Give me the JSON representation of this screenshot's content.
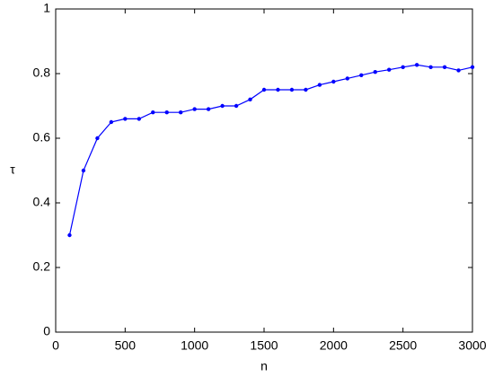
{
  "chart_data": {
    "type": "line",
    "xlabel": "n",
    "ylabel": "τ",
    "x": [
      100,
      200,
      300,
      400,
      500,
      600,
      700,
      800,
      900,
      1000,
      1100,
      1200,
      1300,
      1400,
      1500,
      1600,
      1700,
      1800,
      1900,
      2000,
      2100,
      2200,
      2300,
      2400,
      2500,
      2600,
      2700,
      2800,
      2900,
      3000
    ],
    "series": [
      {
        "color": "#0000ff",
        "values": [
          0.3,
          0.5,
          0.6,
          0.65,
          0.66,
          0.66,
          0.68,
          0.68,
          0.68,
          0.69,
          0.69,
          0.7,
          0.7,
          0.72,
          0.75,
          0.75,
          0.75,
          0.75,
          0.765,
          0.775,
          0.785,
          0.795,
          0.805,
          0.812,
          0.82,
          0.827,
          0.82,
          0.82,
          0.81,
          0.82
        ]
      }
    ],
    "xlim": [
      0,
      3000
    ],
    "xticks": [
      0,
      500,
      1000,
      1500,
      2000,
      2500,
      3000
    ],
    "ylim": [
      0,
      1
    ],
    "yticks": [
      0,
      0.2,
      0.4,
      0.6,
      0.8,
      1
    ],
    "grid": false
  }
}
